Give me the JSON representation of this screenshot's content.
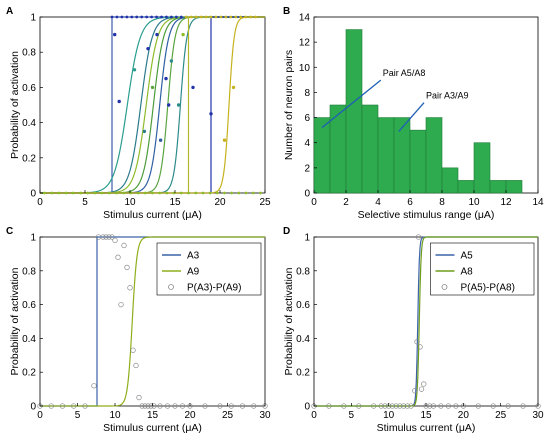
{
  "chart_data": [
    {
      "panel": "A",
      "type": "line",
      "xlabel": "Stimulus current (μA)",
      "ylabel": "Probability of activation",
      "xlim": [
        0,
        25
      ],
      "ylim": [
        0,
        1
      ],
      "xticks": [
        0,
        5,
        10,
        15,
        20,
        25
      ],
      "yticks": [
        0,
        0.2,
        0.4,
        0.6,
        0.8,
        1
      ],
      "grid": false,
      "legend": "none",
      "series": [
        {
          "color": "#3b5ba9",
          "kind": "step",
          "x50": 8.0
        },
        {
          "color": "#2a9d8f",
          "kind": "sigmoid",
          "x50": 9.7,
          "slope": 1.4
        },
        {
          "color": "#2b7a8c",
          "kind": "sigmoid",
          "x50": 11.2,
          "slope": 1.6
        },
        {
          "color": "#8dbb2a",
          "kind": "sigmoid",
          "x50": 11.8,
          "slope": 1.6
        },
        {
          "color": "#4d9b3a",
          "kind": "sigmoid",
          "x50": 12.6,
          "slope": 1.8
        },
        {
          "color": "#2f5fa3",
          "kind": "sigmoid",
          "x50": 13.3,
          "slope": 2.0
        },
        {
          "color": "#5aa540",
          "kind": "sigmoid",
          "x50": 14.2,
          "slope": 2.5
        },
        {
          "color": "#2e8b8b",
          "kind": "sigmoid",
          "x50": 15.6,
          "slope": 2.8
        },
        {
          "color": "#b3b52a",
          "kind": "step",
          "x50": 16.5
        },
        {
          "color": "#2233aa",
          "kind": "step",
          "x50": 19.0
        },
        {
          "color": "#c6b21e",
          "kind": "sigmoid",
          "x50": 21.0,
          "slope": 3.5
        }
      ],
      "points": [
        {
          "x": 8.3,
          "y": 0.9,
          "color": "#2233aa"
        },
        {
          "x": 8.8,
          "y": 0.52,
          "color": "#2233aa"
        },
        {
          "x": 10.5,
          "y": 0.7,
          "color": "#2a9d8f"
        },
        {
          "x": 11.6,
          "y": 0.35,
          "color": "#2b7a8c"
        },
        {
          "x": 12.0,
          "y": 0.82,
          "color": "#2233aa"
        },
        {
          "x": 12.5,
          "y": 0.6,
          "color": "#5aa540"
        },
        {
          "x": 13.0,
          "y": 0.9,
          "color": "#2233aa"
        },
        {
          "x": 13.4,
          "y": 0.3,
          "color": "#2f5fa3"
        },
        {
          "x": 14.0,
          "y": 0.65,
          "color": "#2233aa"
        },
        {
          "x": 14.3,
          "y": 0.5,
          "color": "#2233aa"
        },
        {
          "x": 14.6,
          "y": 0.75,
          "color": "#2e8b8b"
        },
        {
          "x": 15.4,
          "y": 0.5,
          "color": "#2e8b8b"
        },
        {
          "x": 15.9,
          "y": 0.9,
          "color": "#8dbb2a"
        },
        {
          "x": 17.0,
          "y": 0.6,
          "color": "#2233aa"
        },
        {
          "x": 19.0,
          "y": 0.45,
          "color": "#2233aa"
        },
        {
          "x": 20.5,
          "y": 0.3,
          "color": "#c6b21e"
        },
        {
          "x": 21.5,
          "y": 0.6,
          "color": "#c6b21e"
        }
      ]
    },
    {
      "panel": "B",
      "type": "bar",
      "xlabel": "Selective stimulus range (μA)",
      "ylabel": "Number of neuron pairs",
      "xlim": [
        0,
        14
      ],
      "ylim": [
        0,
        14
      ],
      "xticks": [
        0,
        2,
        4,
        6,
        8,
        10,
        12,
        14
      ],
      "yticks": [
        0,
        2,
        4,
        6,
        8,
        10,
        12,
        14
      ],
      "bin_width": 1,
      "bin_starts": [
        0,
        1,
        2,
        3,
        4,
        5,
        6,
        7,
        8,
        9,
        10,
        11,
        12
      ],
      "values": [
        6,
        7,
        13,
        7,
        6,
        6,
        5,
        6,
        2,
        1,
        4,
        1,
        1
      ],
      "annotations": [
        {
          "text": "Pair A5/A8",
          "x": 0.5,
          "y": 5.2
        },
        {
          "text": "Pair A3/A9",
          "x": 5.3,
          "y": 4.9
        }
      ],
      "bar_color": "#2eaa4f",
      "grid": false
    },
    {
      "panel": "C",
      "type": "line",
      "xlabel": "Stimulus current (μA)",
      "ylabel": "Probability of activation",
      "xlim": [
        0,
        30
      ],
      "ylim": [
        0,
        1
      ],
      "xticks": [
        0,
        5,
        10,
        15,
        20,
        25,
        30
      ],
      "yticks": [
        0,
        0.2,
        0.4,
        0.6,
        0.8,
        1
      ],
      "legend": "top-right",
      "series": [
        {
          "name": "A3",
          "color": "#3a63a8",
          "kind": "step",
          "x50": 7.6
        },
        {
          "name": "A9",
          "color": "#8fae1b",
          "kind": "sigmoid",
          "x50": 12.3,
          "slope": 3.2
        },
        {
          "name": "P(A3)-P(A9)",
          "color": "#888888",
          "kind": "markers",
          "x": [
            0,
            1.5,
            3,
            4.5,
            6,
            7.2,
            7.8,
            8.4,
            8.8,
            9.2,
            9.6,
            10.0,
            10.4,
            10.8,
            11.2,
            11.6,
            12.0,
            12.4,
            12.8,
            13.2,
            13.6,
            14.0,
            14.4,
            14.8,
            15.2,
            16,
            17,
            18,
            19,
            20,
            22,
            24,
            25.5,
            27,
            28.5,
            30
          ],
          "y": [
            0,
            0,
            0,
            0,
            0,
            0.12,
            1.0,
            1.0,
            1.0,
            1.0,
            1.0,
            0.98,
            0.88,
            0.6,
            0.95,
            0.82,
            0.7,
            0.33,
            0.24,
            0.05,
            0,
            0,
            0,
            0,
            0,
            0,
            0,
            0,
            0,
            0,
            0,
            0,
            0,
            0,
            0,
            0
          ]
        }
      ]
    },
    {
      "panel": "D",
      "type": "line",
      "xlabel": "Stimulus current (μA)",
      "ylabel": "Probability of activation",
      "xlim": [
        0,
        30
      ],
      "ylim": [
        0,
        1
      ],
      "xticks": [
        0,
        5,
        10,
        15,
        20,
        25,
        30
      ],
      "yticks": [
        0,
        0.2,
        0.4,
        0.6,
        0.8,
        1
      ],
      "legend": "top-right",
      "series": [
        {
          "name": "A5",
          "color": "#3a63a8",
          "kind": "sigmoid",
          "x50": 13.9,
          "slope": 9
        },
        {
          "name": "A8",
          "color": "#6e9d1a",
          "kind": "sigmoid",
          "x50": 14.1,
          "slope": 8
        },
        {
          "name": "P(A5)-P(A8)",
          "color": "#888888",
          "kind": "markers",
          "x": [
            0,
            2,
            4,
            6,
            8,
            9,
            9.5,
            10,
            10.5,
            11,
            11.5,
            12,
            12.5,
            13,
            13.5,
            13.8,
            14.0,
            14.2,
            14.4,
            14.7,
            15,
            15.5,
            16,
            17,
            18,
            19,
            20,
            22,
            24,
            26,
            28,
            30
          ],
          "y": [
            0,
            0,
            0,
            0,
            0,
            0,
            0,
            0,
            0,
            0,
            0,
            0,
            0,
            0,
            0.09,
            0.38,
            1.0,
            0.35,
            0.1,
            0.13,
            0,
            0,
            0,
            0,
            0,
            0,
            0,
            0,
            0,
            0,
            0,
            0
          ]
        }
      ]
    }
  ]
}
